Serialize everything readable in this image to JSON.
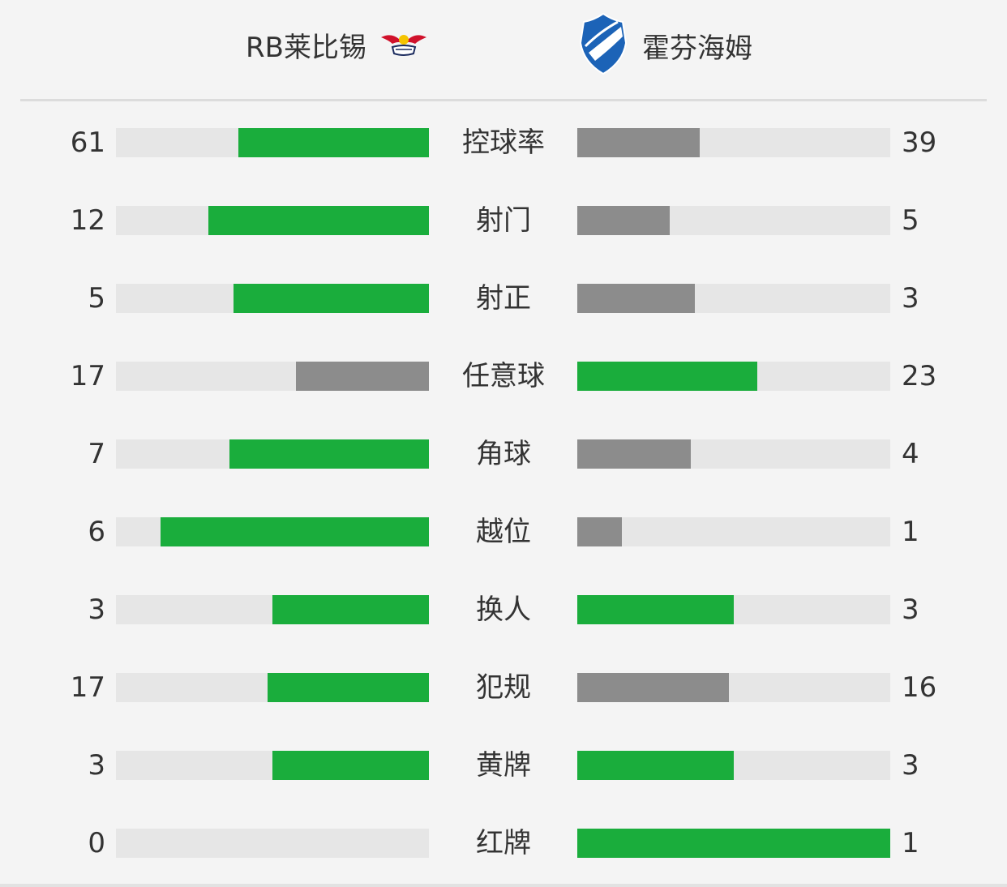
{
  "colors": {
    "winner": "#1aad3c",
    "loser": "#8c8c8c",
    "track": "#e6e6e6"
  },
  "teams": {
    "home": {
      "name": "RB莱比锡",
      "logo_icon": "rb-leipzig-logo-icon"
    },
    "away": {
      "name": "霍芬海姆",
      "logo_icon": "hoffenheim-logo-icon"
    }
  },
  "stats": [
    {
      "label": "控球率",
      "home": 61,
      "away": 39
    },
    {
      "label": "射门",
      "home": 12,
      "away": 5
    },
    {
      "label": "射正",
      "home": 5,
      "away": 3
    },
    {
      "label": "任意球",
      "home": 17,
      "away": 23
    },
    {
      "label": "角球",
      "home": 7,
      "away": 4
    },
    {
      "label": "越位",
      "home": 6,
      "away": 1
    },
    {
      "label": "换人",
      "home": 3,
      "away": 3
    },
    {
      "label": "犯规",
      "home": 17,
      "away": 16
    },
    {
      "label": "黄牌",
      "home": 3,
      "away": 3
    },
    {
      "label": "红牌",
      "home": 0,
      "away": 1
    }
  ]
}
